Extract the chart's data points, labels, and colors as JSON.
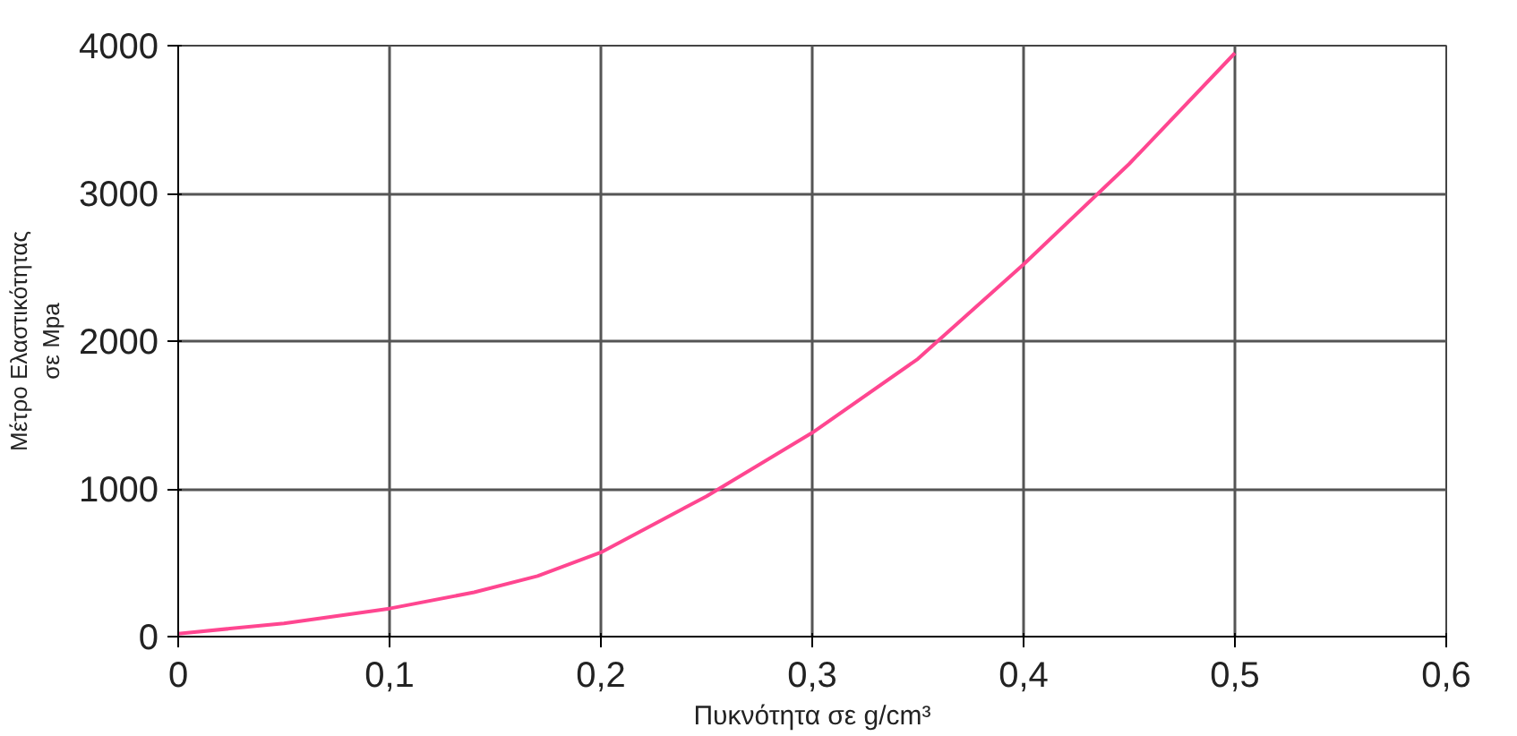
{
  "chart_data": {
    "type": "line",
    "xlabel": "Πυκνότητα σε g/cm³",
    "ylabel": "Μέτρο Ελαστικότητας\nσε Mpa",
    "series": [
      {
        "color": "#ff4690",
        "x": [
          0,
          0.05,
          0.1,
          0.14,
          0.17,
          0.2,
          0.25,
          0.3,
          0.35,
          0.4,
          0.45,
          0.5
        ],
        "values": [
          20,
          90,
          190,
          300,
          410,
          570,
          950,
          1380,
          1880,
          2520,
          3200,
          3950
        ]
      }
    ],
    "xlim": [
      0,
      0.6
    ],
    "ylim": [
      0,
      4000
    ],
    "xticks": [
      {
        "value": 0,
        "label": "0"
      },
      {
        "value": 0.1,
        "label": "0,1"
      },
      {
        "value": 0.2,
        "label": "0,2"
      },
      {
        "value": 0.3,
        "label": "0,3"
      },
      {
        "value": 0.4,
        "label": "0,4"
      },
      {
        "value": 0.5,
        "label": "0,5"
      },
      {
        "value": 0.6,
        "label": "0,6"
      }
    ],
    "yticks": [
      0,
      1000,
      2000,
      3000,
      4000
    ],
    "grid": true,
    "marker": "none",
    "line_style": "solid"
  }
}
